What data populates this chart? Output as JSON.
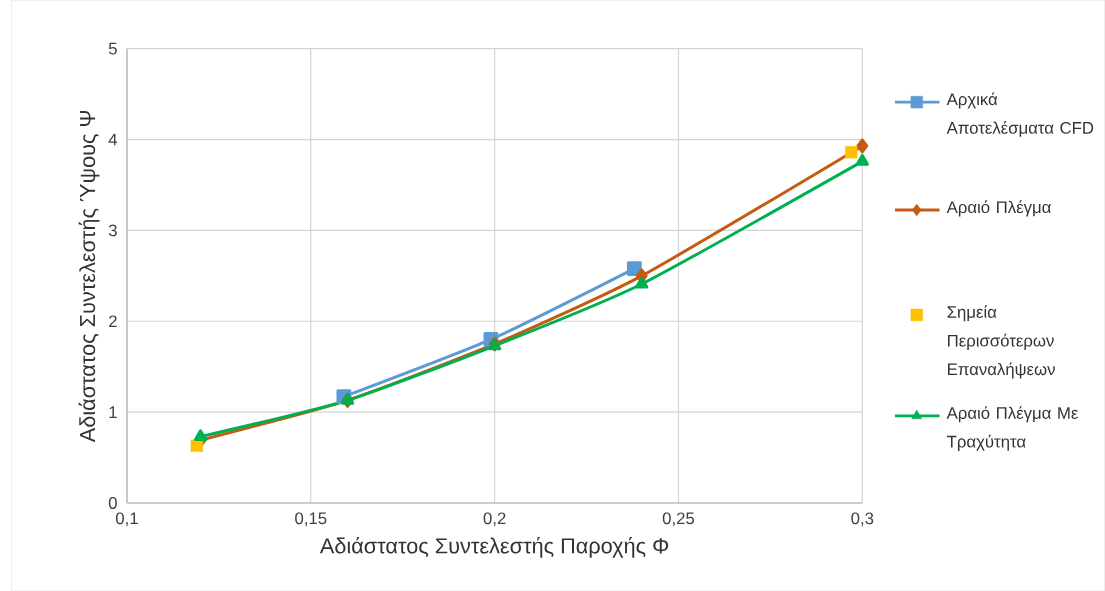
{
  "chart_data": {
    "type": "line",
    "xlabel": "Αδιάστατος Συντελεστής Παροχής Φ",
    "ylabel": "Αδιάστατος Συντελεστής Ύψους Ψ",
    "xlim": [
      0.1,
      0.3
    ],
    "xticks": [
      {
        "value": 0.1,
        "label": "0,1"
      },
      {
        "value": 0.15,
        "label": "0,15"
      },
      {
        "value": 0.2,
        "label": "0,2"
      },
      {
        "value": 0.25,
        "label": "0,25"
      },
      {
        "value": 0.3,
        "label": "0,3"
      }
    ],
    "ylim": [
      0,
      5
    ],
    "yticks": [
      0,
      1,
      2,
      3,
      4,
      5
    ],
    "grid": true,
    "legend": "right",
    "series": [
      {
        "name": "Αρχικά Αποτελέσματα CFD",
        "color": "#5b9bd5",
        "marker": "square",
        "x": [
          0.159,
          0.199,
          0.238
        ],
        "values": [
          1.17,
          1.8,
          2.58
        ]
      },
      {
        "name": "Αραιό Πλέγμα",
        "color": "#c55a11",
        "marker": "diamond",
        "x": [
          0.12,
          0.16,
          0.2,
          0.24,
          0.3
        ],
        "values": [
          0.69,
          1.13,
          1.75,
          2.5,
          3.93
        ]
      },
      {
        "name": "Σημεία Περισσότερων Επαναλήψεων",
        "type": "scatter",
        "color": "#ffc000",
        "marker": "square",
        "x": [
          0.119,
          0.297
        ],
        "values": [
          0.63,
          3.86
        ]
      },
      {
        "name": "Αραιό Πλέγμα Με Τραχύτητα",
        "color": "#00b050",
        "marker": "triangle",
        "x": [
          0.12,
          0.16,
          0.2,
          0.24,
          0.3
        ],
        "values": [
          0.73,
          1.13,
          1.73,
          2.41,
          3.76
        ]
      }
    ]
  }
}
